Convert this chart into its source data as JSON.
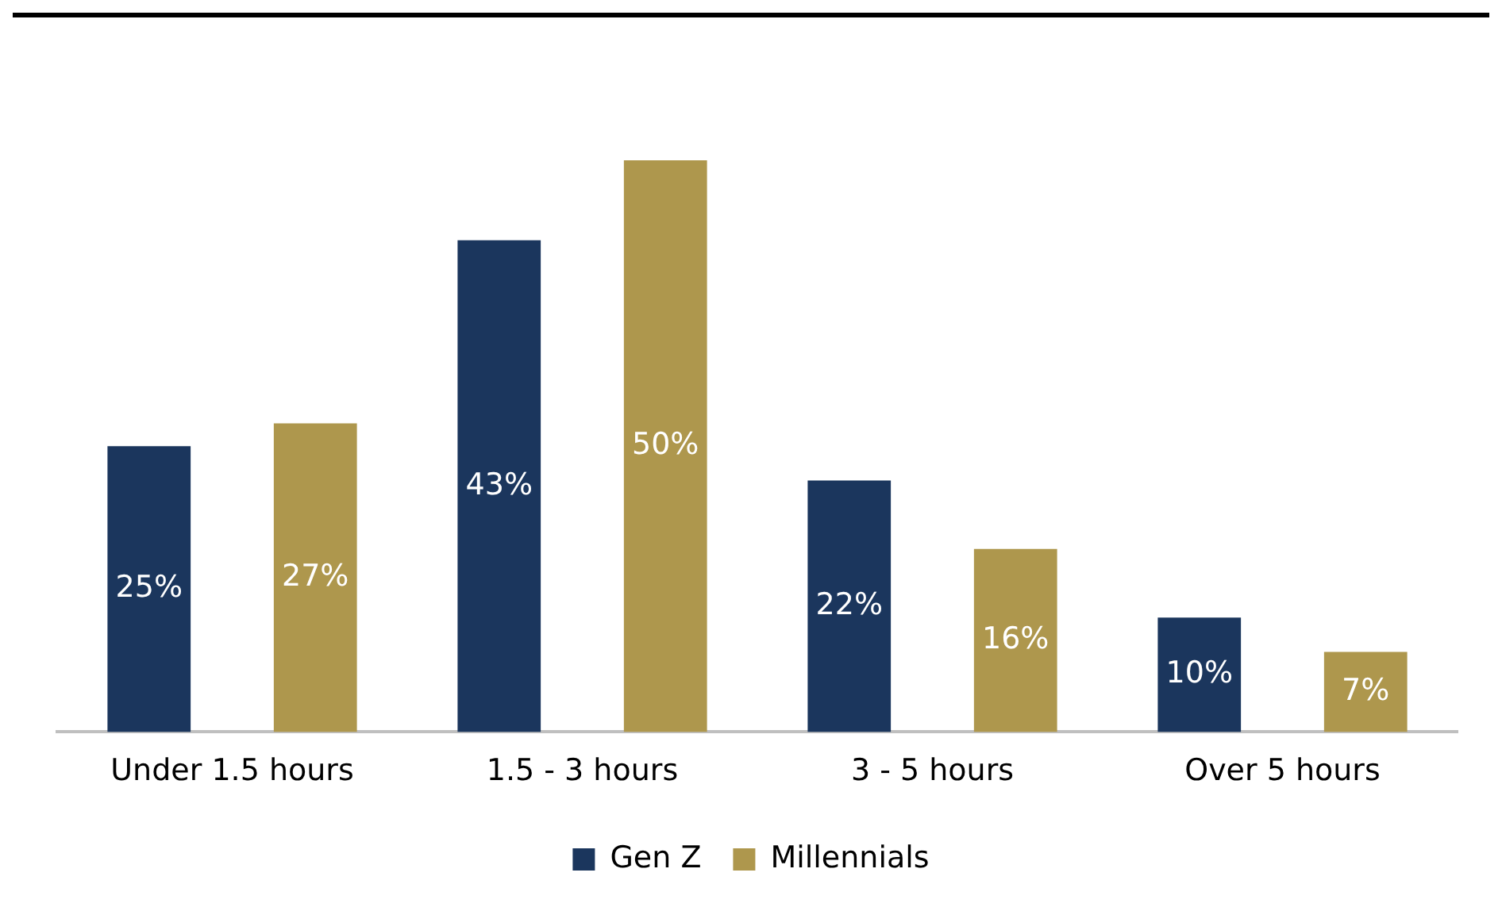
{
  "chart_data": {
    "type": "bar",
    "categories": [
      "Under 1.5 hours",
      "1.5 - 3 hours",
      "3 - 5 hours",
      "Over 5 hours"
    ],
    "series": [
      {
        "name": "Gen Z",
        "color": "#1b365d",
        "values": [
          25,
          43,
          22,
          10
        ],
        "value_labels": [
          "25%",
          "43%",
          "22%",
          "10%"
        ]
      },
      {
        "name": "Millennials",
        "color": "#ae974d",
        "values": [
          27,
          50,
          16,
          7
        ],
        "value_labels": [
          "27%",
          "50%",
          "16%",
          "7%"
        ]
      }
    ],
    "legend": "bottom",
    "grid": false
  }
}
